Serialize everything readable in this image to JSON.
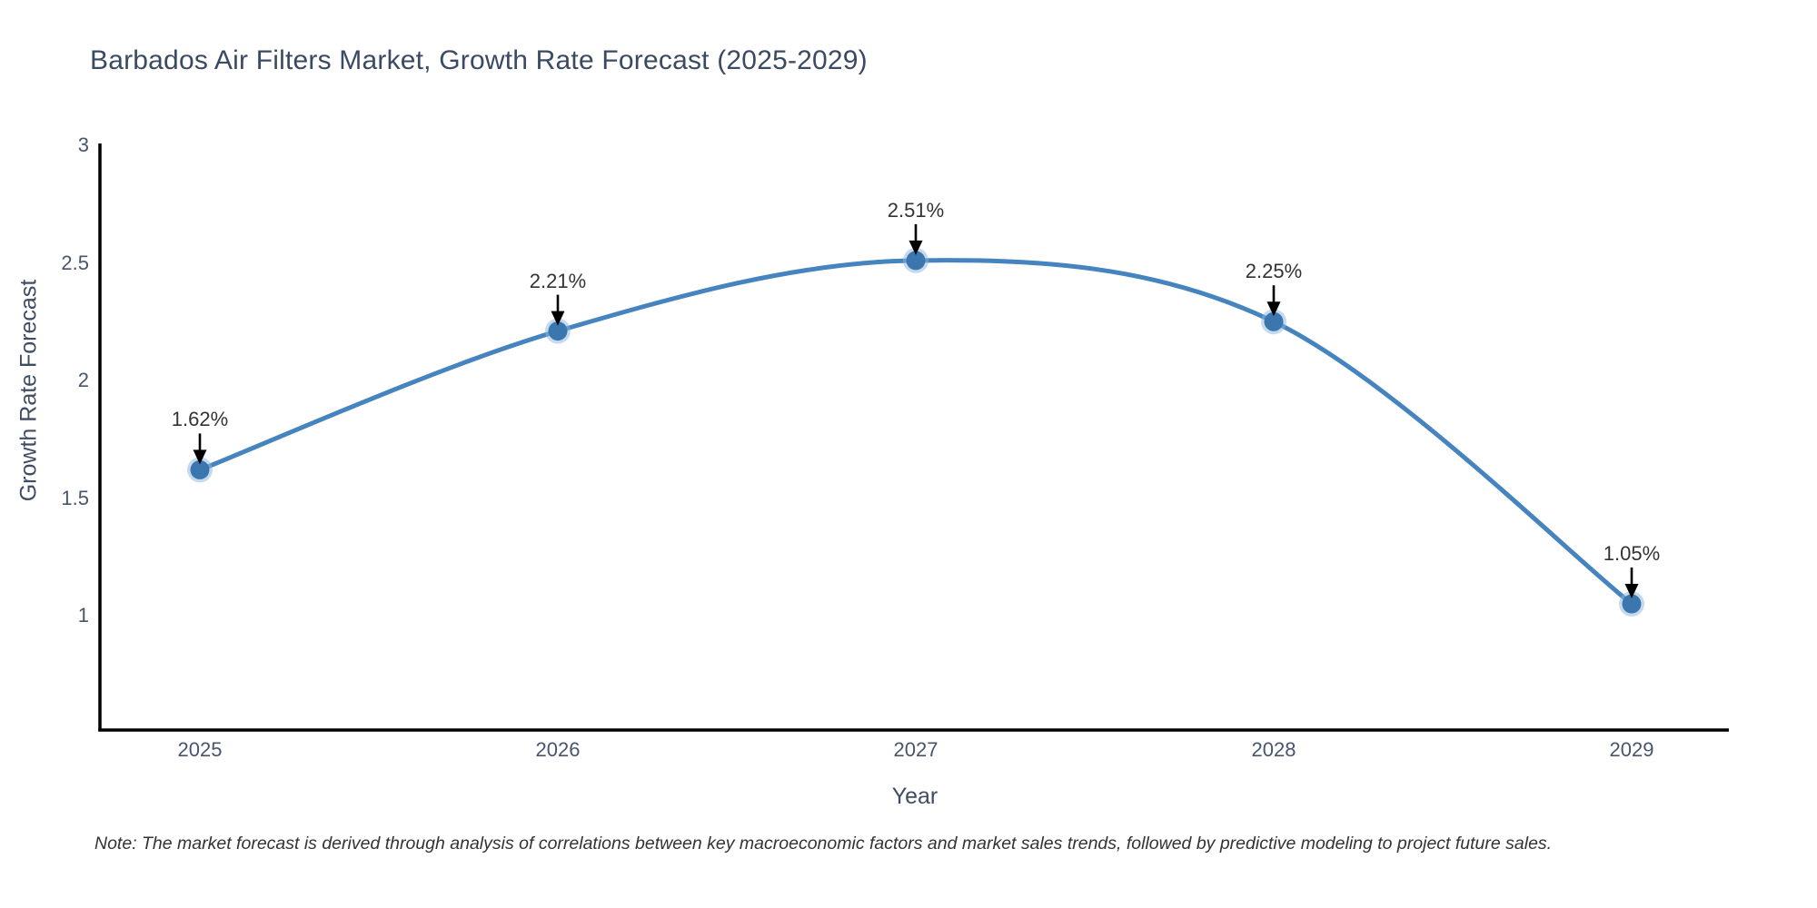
{
  "title": "Barbados Air Filters Market, Growth Rate Forecast (2025-2029)",
  "note": "Note: The market forecast is derived through analysis of correlations between key macroeconomic factors and market sales trends, followed by predictive modeling to project future sales.",
  "chart_data": {
    "type": "line",
    "title": "Barbados Air Filters Market, Growth Rate Forecast (2025-2029)",
    "xlabel": "Year",
    "ylabel": "Growth Rate Forecast",
    "x": [
      2025,
      2026,
      2027,
      2028,
      2029
    ],
    "values": [
      1.62,
      2.21,
      2.51,
      2.25,
      1.05
    ],
    "point_labels": [
      "1.62%",
      "2.21%",
      "2.51%",
      "2.25%",
      "1.05%"
    ],
    "x_tick_labels": [
      "2025",
      "2026",
      "2027",
      "2028",
      "2029"
    ],
    "y_tick_labels": [
      "3",
      "2.5",
      "2",
      "1.5",
      "1"
    ],
    "ylim": [
      0.5,
      3
    ],
    "xlim": [
      2024.72,
      2029.28
    ],
    "line_shape": "spline",
    "grid": false,
    "legend": "none",
    "annotations_have_arrows": true,
    "colors": {
      "line": "#4584BE",
      "marker": "#3B76AF",
      "marker_halo": "#8CB8DC",
      "arrow": "#000000",
      "axis_line": "#000000",
      "title_text": "#3B4A63",
      "tick_text": "#47556E",
      "annotation_text": "#333333",
      "note_text": "#333333",
      "background": "#FFFFFF"
    }
  }
}
